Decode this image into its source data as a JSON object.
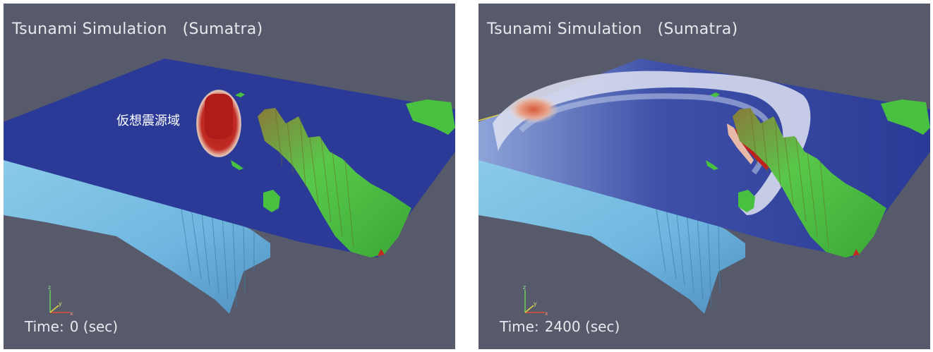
{
  "panels": [
    {
      "title": "Tsunami Simulation   (Sumatra)",
      "time_label": "Time:",
      "time_value": "0 (sec)",
      "annotation": "仮想震源域"
    },
    {
      "title": "Tsunami Simulation   (Sumatra)",
      "time_label": "Time:",
      "time_value": "2400 (sec)"
    }
  ],
  "axes": {
    "z": "z",
    "y": "y",
    "x": "x"
  },
  "colors": {
    "background": "#575a6a",
    "ocean_surface": "#2a3a96",
    "seafloor": "#6fb6e0",
    "land": "#48c040",
    "wave_high": "#c0201c",
    "wave_mid": "#e8d8d0"
  }
}
